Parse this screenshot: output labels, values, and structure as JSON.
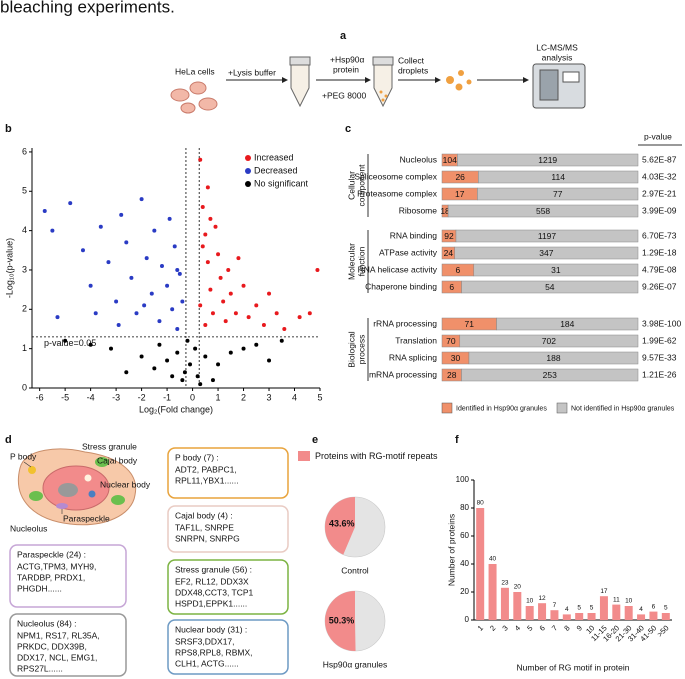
{
  "heading": "bleaching experiments.",
  "panel_labels": [
    "a",
    "b",
    "c",
    "d",
    "e",
    "f"
  ],
  "panel_a": {
    "labels": [
      "HeLa cells",
      "+Lysis buffer",
      "+Hsp90α",
      "protein",
      "+PEG 8000",
      "Collect",
      "droplets",
      "LC-MS/MS",
      "analysis"
    ]
  },
  "panel_d": {
    "cell_labels": [
      "P body",
      "Stress granule",
      "Cajal body",
      "Nuclear body",
      "Paraspeckle",
      "Nucleolus"
    ],
    "boxes": [
      {
        "title": "P body (7) :",
        "lines": [
          "ADT2, PABPC1,",
          "RPL11,YBX1......"
        ]
      },
      {
        "title": "Cajal body (4) :",
        "lines": [
          "TAF1L, SNRPE",
          "SNRPN, SNRPG"
        ]
      },
      {
        "title": "Stress granule (56) :",
        "lines": [
          "EF2, RL12, DDX3X",
          "DDX48,CCT3, TCP1",
          "HSPD1,EPPK1......"
        ]
      },
      {
        "title": "Nuclear body (31) :",
        "lines": [
          "SRSF3,DDX17,",
          "RPS8,RPL8, RBMX,",
          "CLH1, ACTG......"
        ]
      },
      {
        "title": "Paraspeckle (24) :",
        "lines": [
          "ACTG,TPM3, MYH9,",
          "TARDBP, PRDX1,",
          "PHGDH......"
        ]
      },
      {
        "title": "Nucleolus (84) :",
        "lines": [
          "NPM1, RS17, RL35A,",
          "PRKDC, DDX39B,",
          "DDX17, NCL, EMG1,",
          "RPS27L......"
        ]
      }
    ]
  },
  "chart_data": [
    {
      "type": "scatter",
      "xlabel": "Log₂(Fold change)",
      "ylabel": "-Log₁₀(p-value)",
      "xlim": [
        -6.3,
        5
      ],
      "ylim": [
        0,
        6.1
      ],
      "xticks": [
        -6,
        -5,
        -4,
        -3,
        -2,
        -1,
        0,
        1,
        2,
        3,
        4,
        5
      ],
      "yticks": [
        0,
        1,
        2,
        3,
        4,
        5,
        6
      ],
      "hlines": [
        1.3
      ],
      "vlines": [
        -0.26,
        0.26
      ],
      "annotation": "p-value=0.05",
      "legend": "upper right",
      "series": [
        {
          "name": "Increased",
          "color": "#e8191d",
          "x": [
            0.3,
            0.4,
            0.5,
            0.6,
            0.7,
            0.8,
            0.3,
            0.5,
            0.9,
            1.0,
            1.1,
            1.2,
            1.3,
            0.6,
            1.4,
            1.5,
            1.7,
            1.8,
            2.0,
            2.2,
            2.5,
            2.8,
            3.0,
            3.3,
            3.6,
            4.2,
            4.6,
            4.9,
            0.4,
            0.7
          ],
          "values": [
            5.8,
            4.6,
            3.9,
            3.2,
            2.5,
            1.9,
            2.1,
            1.6,
            4.1,
            3.4,
            2.8,
            2.2,
            1.7,
            5.1,
            3.0,
            2.4,
            1.9,
            3.3,
            2.6,
            1.8,
            2.1,
            1.6,
            2.4,
            1.9,
            1.5,
            1.8,
            1.9,
            3.0,
            3.6,
            4.3
          ]
        },
        {
          "name": "Decreased",
          "color": "#2a3bc4",
          "x": [
            -5.8,
            -5.5,
            -5.3,
            -4.8,
            -4.3,
            -4.0,
            -3.6,
            -3.3,
            -3.0,
            -2.8,
            -2.6,
            -2.4,
            -2.2,
            -2.0,
            -1.8,
            -1.6,
            -1.5,
            -1.3,
            -1.2,
            -1.0,
            -0.9,
            -0.8,
            -0.7,
            -0.6,
            -0.5,
            -0.4,
            -3.8,
            -2.9,
            -1.9,
            -0.6
          ],
          "values": [
            4.5,
            4.0,
            1.8,
            4.7,
            3.5,
            2.6,
            4.1,
            3.2,
            2.2,
            4.4,
            3.7,
            2.8,
            1.9,
            4.8,
            3.3,
            2.4,
            4.0,
            1.7,
            3.1,
            2.6,
            4.3,
            2.0,
            3.6,
            1.5,
            2.9,
            2.2,
            1.9,
            1.6,
            2.1,
            3.0
          ]
        },
        {
          "name": "No significant",
          "color": "#000000",
          "x": [
            -0.2,
            0.1,
            -0.1,
            0.2,
            -0.3,
            -0.6,
            -1.0,
            -1.5,
            -2.0,
            -2.6,
            -3.2,
            -4.0,
            -5.0,
            -1.3,
            0.5,
            1.0,
            1.5,
            2.0,
            2.5,
            3.0,
            3.5,
            0.8,
            0.3,
            -0.4,
            -0.8
          ],
          "values": [
            1.2,
            1.0,
            0.6,
            0.3,
            0.4,
            0.9,
            0.7,
            0.5,
            0.8,
            0.4,
            1.0,
            1.1,
            1.2,
            1.1,
            0.8,
            0.6,
            0.9,
            1.0,
            1.1,
            0.7,
            1.2,
            0.2,
            0.1,
            0.2,
            0.3
          ]
        }
      ]
    },
    {
      "type": "bar",
      "stacked": true,
      "horizontal": true,
      "column_header": "p-value",
      "series": [
        {
          "name": "Identified in Hsp90α granules",
          "color": "#f0906a"
        },
        {
          "name": "Not identified in Hsp90α granules",
          "color": "#c4c4c4"
        }
      ],
      "groups": [
        {
          "label": [
            "Cellular",
            "component"
          ],
          "categories": [
            "Nucleolus",
            "Spliceosome complex",
            "Proteasome complex",
            "Ribosome"
          ],
          "values": [
            [
              104,
              1219
            ],
            [
              26,
              114
            ],
            [
              17,
              77
            ],
            [
              18,
              558
            ]
          ],
          "p_values": [
            "5.62E-87",
            "4.03E-32",
            "2.97E-21",
            "3.99E-09"
          ]
        },
        {
          "label": [
            "Molecular",
            "function"
          ],
          "categories": [
            "RNA binding",
            "ATPase activity",
            "RNA helicase activity",
            "Chaperone binding"
          ],
          "values": [
            [
              92,
              1197
            ],
            [
              24,
              347
            ],
            [
              6,
              31
            ],
            [
              6,
              54
            ]
          ],
          "p_values": [
            "6.70E-73",
            "1.29E-18",
            "4.79E-08",
            "9.26E-07"
          ]
        },
        {
          "label": [
            "Biological",
            "process"
          ],
          "categories": [
            "rRNA processing",
            "Translation",
            "RNA splicing",
            "mRNA processing"
          ],
          "values": [
            [
              71,
              184
            ],
            [
              70,
              702
            ],
            [
              30,
              188
            ],
            [
              28,
              253
            ]
          ],
          "p_values": [
            "3.98E-100",
            "1.99E-62",
            "9.57E-33",
            "1.21E-26"
          ]
        }
      ]
    },
    {
      "type": "pie",
      "series": [
        {
          "name": "Proteins with RG-motif repeats",
          "color": "#f28b8b"
        }
      ],
      "pies": [
        {
          "label": "Control",
          "values": [
            43.6
          ],
          "value_labels": [
            "43.6%"
          ]
        },
        {
          "label": "Hsp90α granules",
          "values": [
            50.3
          ],
          "value_labels": [
            "50.3%"
          ]
        }
      ]
    },
    {
      "type": "bar",
      "xlabel": "Number of RG motif in protein",
      "ylabel": "Number of proteins",
      "categories": [
        "1",
        "2",
        "3",
        "4",
        "5",
        "6",
        "7",
        "8",
        "9",
        "10",
        "11-15",
        "16-20",
        "21-30",
        "31-40",
        "41-50",
        ">50"
      ],
      "values": [
        80,
        40,
        23,
        20,
        10,
        12,
        7,
        4,
        5,
        5,
        17,
        11,
        10,
        4,
        6,
        5
      ],
      "color": "#f28b8b",
      "ylim": [
        0,
        100
      ],
      "yticks": [
        0,
        20,
        40,
        60,
        80,
        100
      ]
    }
  ]
}
